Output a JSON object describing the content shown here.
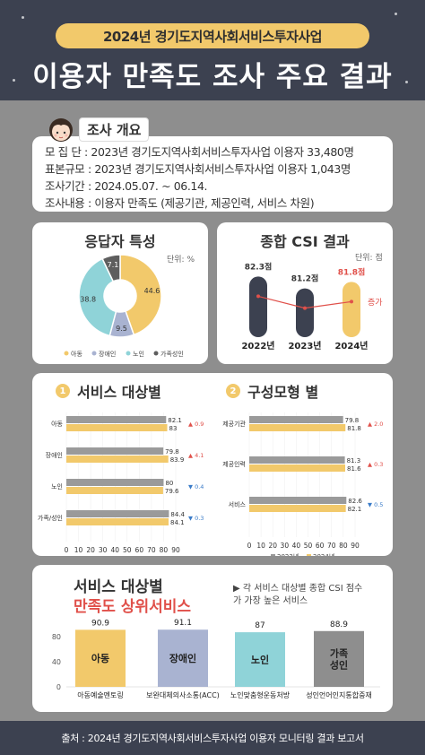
{
  "header": {
    "subtitle": "2024년 경기도지역사회서비스투자사업",
    "title": "이용자 만족도 조사 주요 결과"
  },
  "overview": {
    "title": "조사 개요",
    "lines": [
      "모 집 단 : 2023년 경기도지역사회서비스투자사업 이용자 33,480명",
      "표본규모 : 2023년 경기도지역사회서비스투자사업 이용자 1,043명",
      "조사기간 : 2024.05.07. ~ 06.14.",
      "조사내용 : 이용자 만족도 (제공기관, 제공인력, 서비스 차원)"
    ]
  },
  "respondents": {
    "title": "응답자 특성",
    "unit": "단위: %"
  },
  "csi": {
    "title": "종합 CSI 결과",
    "unit": "단위: 점",
    "increase_label": "증가"
  },
  "by_service": {
    "number": "1",
    "title": "서비스 대상별"
  },
  "by_household": {
    "number": "2",
    "title": "구성모형 별"
  },
  "top_services": {
    "title": "서비스 대상별",
    "subtitle": "만족도 상위서비스",
    "note": "▶ 각 서비스 대상별 종합 CSI 점수가 가장 높은 서비스"
  },
  "footer": "출처 : 2024년 경기도지역사회서비스투자사업 이용자 모니터링 결과 보고서",
  "colors": {
    "header_bg": "#3c4150",
    "accent_yellow": "#f2c96b",
    "navy": "#3c4150",
    "gray_bar": "#9a9a9a",
    "red": "#e0504a",
    "blue": "#3a7bc8",
    "teal": "#8fd3d8",
    "lavender": "#a9b3d1"
  },
  "chart_data": [
    {
      "type": "pie",
      "title": "응답자 특성",
      "unit": "단위: %",
      "labels": [
        "아동",
        "장애인",
        "노인",
        "가족성인"
      ],
      "values": [
        44.6,
        9.5,
        38.8,
        7.1
      ],
      "colors": [
        "#f2c96b",
        "#a9b3d1",
        "#8fd3d8",
        "#5e5e5e"
      ]
    },
    {
      "type": "bar",
      "title": "종합 CSI 결과",
      "unit": "단위: 점",
      "categories": [
        "2022년",
        "2023년",
        "2024년"
      ],
      "values": [
        82.3,
        81.2,
        81.8
      ],
      "value_labels": [
        "82.3점",
        "81.2점",
        "81.8점"
      ],
      "colors": [
        "#3c4150",
        "#3c4150",
        "#f2c96b"
      ],
      "line_overlay": true
    },
    {
      "type": "bar",
      "orientation": "horizontal",
      "title": "서비스 대상별",
      "categories": [
        "아동",
        "장애인",
        "노인",
        "가족/성인"
      ],
      "series": [
        {
          "name": "2023년",
          "values": [
            82.1,
            79.8,
            80,
            84.4
          ]
        },
        {
          "name": "2024년",
          "values": [
            83,
            83.9,
            79.6,
            84.1
          ]
        }
      ],
      "changes": [
        "▲ 0.9",
        "▲ 4.1",
        "▼ 0.4",
        "▼ 0.3"
      ],
      "xlim": [
        0,
        90
      ],
      "xticks": [
        0,
        10,
        20,
        30,
        40,
        50,
        60,
        70,
        80,
        90
      ]
    },
    {
      "type": "bar",
      "orientation": "horizontal",
      "title": "구성모형 별",
      "categories": [
        "제공기관",
        "제공인력",
        "서비스"
      ],
      "series": [
        {
          "name": "2023년",
          "values": [
            79.8,
            81.3,
            82.6
          ]
        },
        {
          "name": "2024년",
          "values": [
            81.8,
            81.6,
            82.1
          ]
        }
      ],
      "changes": [
        "▲ 2.0",
        "▲ 0.3",
        "▼ 0.5"
      ],
      "xlim": [
        0,
        90
      ],
      "xticks": [
        0,
        10,
        20,
        30,
        40,
        50,
        60,
        70,
        80,
        90
      ]
    },
    {
      "type": "bar",
      "title": "서비스 대상별 만족도 상위서비스",
      "categories": [
        "아동",
        "장애인",
        "노인",
        "가족\n성인"
      ],
      "services": [
        "아동예술멘토링",
        "보완대체의사소통(ACC)",
        "노인맞춤형운동처방",
        "성인언어인지통합중재"
      ],
      "values": [
        90.9,
        91.1,
        87,
        88.9
      ],
      "colors": [
        "#f2c96b",
        "#a9b3d1",
        "#8fd3d8",
        "#8e8e8e"
      ],
      "ylim": [
        0,
        80
      ],
      "yticks": [
        0,
        40,
        80
      ]
    }
  ]
}
